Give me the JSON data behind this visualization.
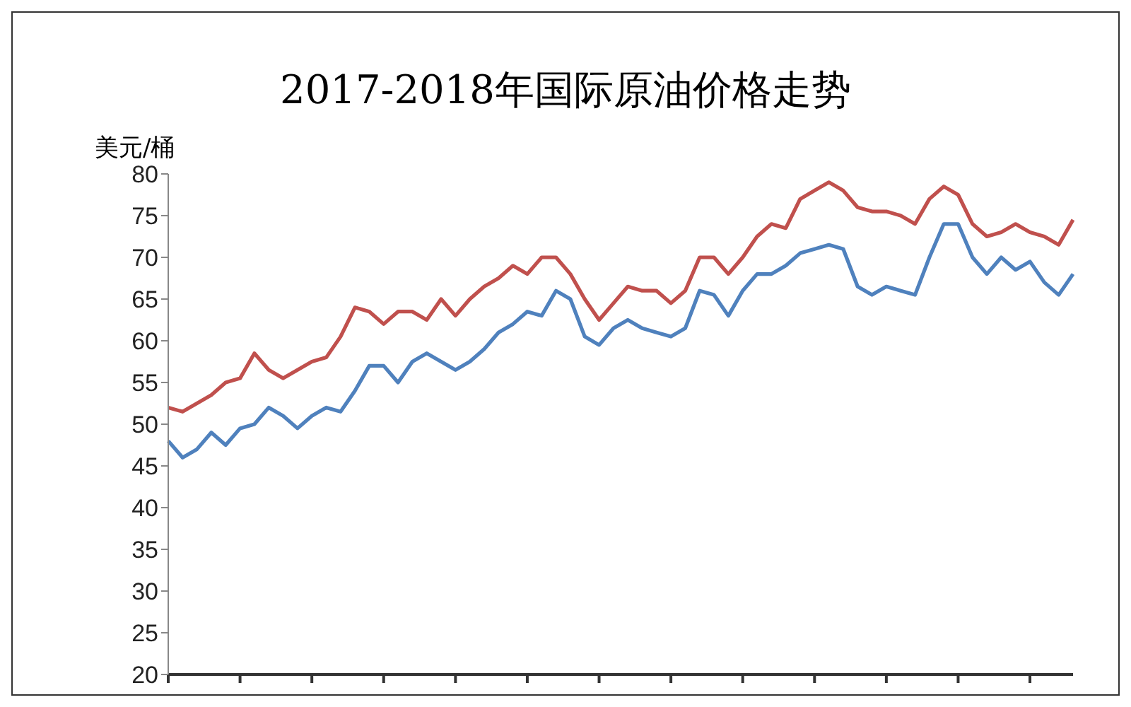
{
  "chart_data": {
    "type": "line",
    "title": "2017-2018年国际原油价格走势",
    "ylabel": "美元/桶",
    "categories": [
      null,
      null,
      null,
      null,
      null,
      null,
      null,
      null,
      null,
      null,
      null,
      null,
      null,
      null,
      null,
      null,
      null,
      null,
      null,
      null,
      null,
      null,
      null,
      null,
      null,
      null,
      null,
      null,
      null,
      null,
      null,
      null,
      null,
      null,
      null,
      null,
      null,
      null,
      null,
      null,
      null,
      null,
      null,
      null,
      null,
      null,
      null,
      null,
      null,
      null,
      null,
      null,
      null,
      null,
      null,
      null,
      null,
      null,
      null,
      null,
      null,
      null,
      null,
      null
    ],
    "series": [
      {
        "color": "#c0504d",
        "values": [
          52,
          51.5,
          52.5,
          53.5,
          55,
          55.5,
          58.5,
          56.5,
          55.5,
          56.5,
          57.5,
          58,
          60.5,
          64,
          63.5,
          62,
          63.5,
          63.5,
          62.5,
          65,
          63,
          65,
          66.5,
          67.5,
          69,
          68,
          70,
          70,
          68,
          65,
          62.5,
          64.5,
          66.5,
          66,
          66,
          64.5,
          66,
          70,
          70,
          68,
          70,
          72.5,
          74,
          73.5,
          77,
          78,
          79,
          78,
          76,
          75.5,
          75.5,
          75,
          74,
          77,
          78.5,
          77.5,
          74,
          72.5,
          73,
          74,
          73,
          72.5,
          71.5,
          74.5
        ]
      },
      {
        "color": "#4f81bd",
        "values": [
          48,
          46,
          47,
          49,
          47.5,
          49.5,
          50,
          52,
          51,
          49.5,
          51,
          52,
          51.5,
          54,
          57,
          57,
          55,
          57.5,
          58.5,
          57.5,
          56.5,
          57.5,
          59,
          61,
          62,
          63.5,
          63,
          66,
          65,
          60.5,
          59.5,
          61.5,
          62.5,
          61.5,
          61,
          60.5,
          61.5,
          66,
          65.5,
          63,
          66,
          68,
          68,
          69,
          70.5,
          71,
          71.5,
          71,
          66.5,
          65.5,
          66.5,
          66,
          65.5,
          70,
          74,
          74,
          70,
          68,
          70,
          68.5,
          69.5,
          67,
          65.5,
          68
        ]
      }
    ],
    "ylim": [
      20,
      80
    ],
    "yticks": [
      20,
      25,
      30,
      35,
      40,
      45,
      50,
      55,
      60,
      65,
      70,
      75,
      80
    ],
    "marker": "none",
    "line_style": "solid"
  }
}
